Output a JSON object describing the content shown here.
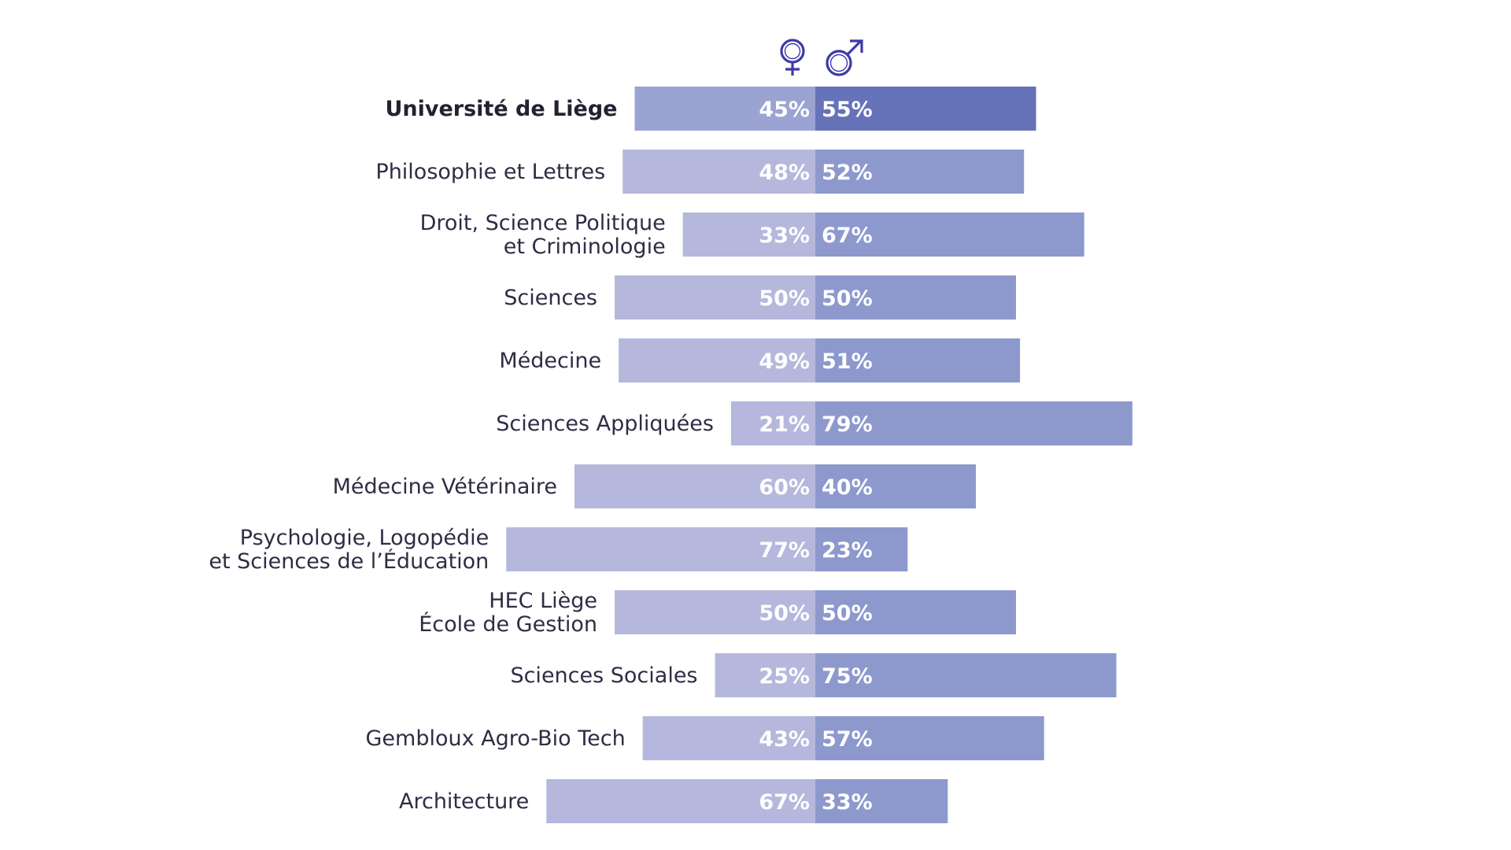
{
  "colors": {
    "female_bar": "#b5b8dc",
    "male_bar": "#8d99cd",
    "female_bar_total": "#9aa3d2",
    "male_bar_total": "#6673b8",
    "icon_color": "#3d3aa8",
    "label_text": "#2d2d44",
    "percent_text": "#ffffff"
  },
  "legend": {
    "female_icon": "female-symbol-icon",
    "male_icon": "male-symbol-icon"
  },
  "chart_data": {
    "type": "bar",
    "orientation": "horizontal-diverging",
    "categories": [
      [
        "Université de Liège"
      ],
      [
        "Philosophie et Lettres"
      ],
      [
        "Droit, Science Politique",
        "et Criminologie"
      ],
      [
        "Sciences"
      ],
      [
        "Médecine"
      ],
      [
        "Sciences Appliquées"
      ],
      [
        "Médecine Vétérinaire"
      ],
      [
        "Psychologie, Logopédie",
        "et Sciences de l’Éducation"
      ],
      [
        "HEC Liège",
        "École de Gestion"
      ],
      [
        "Sciences Sociales"
      ],
      [
        "Gembloux Agro-Bio Tech"
      ],
      [
        "Architecture"
      ]
    ],
    "highlight_index": 0,
    "series": [
      {
        "values": [
          45,
          48,
          33,
          50,
          49,
          21,
          60,
          77,
          50,
          25,
          43,
          67
        ],
        "labels": [
          "45%",
          "48%",
          "33%",
          "50%",
          "49%",
          "21%",
          "60%",
          "77%",
          "50%",
          "25%",
          "43%",
          "67%"
        ]
      },
      {
        "values": [
          55,
          52,
          67,
          50,
          51,
          79,
          40,
          23,
          50,
          75,
          57,
          33
        ],
        "labels": [
          "55%",
          "52%",
          "67%",
          "50%",
          "51%",
          "79%",
          "40%",
          "23%",
          "50%",
          "75%",
          "57%",
          "33%"
        ]
      }
    ],
    "xlim": [
      0,
      100
    ]
  }
}
